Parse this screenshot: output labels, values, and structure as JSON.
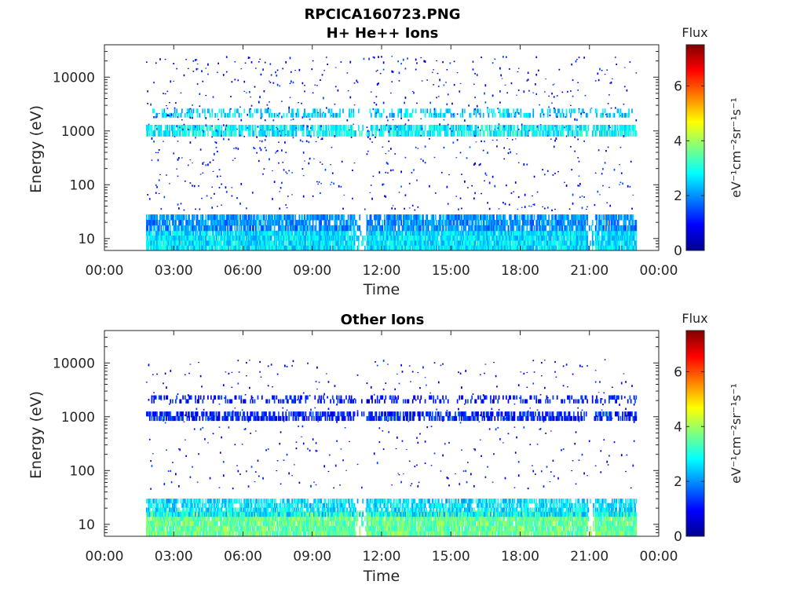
{
  "figure_title": "RPCICA160723.PNG",
  "chart_data": [
    {
      "type": "heatmap",
      "title": "H+ He++ Ions",
      "xlabel": "Time",
      "ylabel": "Energy (eV)",
      "x_ticks": [
        "00:00",
        "03:00",
        "06:00",
        "09:00",
        "12:00",
        "15:00",
        "18:00",
        "21:00",
        "00:00"
      ],
      "x_range_hours": [
        0,
        24
      ],
      "y_scale": "log",
      "y_ticks": [
        "10",
        "100",
        "1000",
        "10000"
      ],
      "y_range_eV": [
        6,
        40000
      ],
      "data_time_range_hours": [
        1.8,
        23.0
      ],
      "colorbar": {
        "label_top": "Flux",
        "label_side": "eV⁻¹cm⁻²sr⁻¹s⁻¹",
        "range": [
          0,
          7.5
        ],
        "ticks": [
          "0",
          "2",
          "4",
          "6"
        ]
      },
      "bands": [
        {
          "energy_range_eV": [
            6,
            14
          ],
          "level": 2.6,
          "density": 0.95,
          "note": "low-energy band"
        },
        {
          "energy_range_eV": [
            14,
            28
          ],
          "level": 2.0,
          "density": 0.8
        },
        {
          "energy_range_eV": [
            800,
            1300
          ],
          "level": 2.8,
          "density": 0.7,
          "note": "~1 keV band"
        },
        {
          "energy_range_eV": [
            1800,
            2600
          ],
          "level": 2.5,
          "density": 0.35
        },
        {
          "energy_range_eV": [
            30,
            25000
          ],
          "level": 1.0,
          "density": 0.12,
          "note": "background"
        }
      ],
      "gaps_hours": [
        [
          10.8,
          11.3
        ],
        [
          20.9,
          21.2
        ]
      ]
    },
    {
      "type": "heatmap",
      "title": "Other Ions",
      "xlabel": "Time",
      "ylabel": "Energy (eV)",
      "x_ticks": [
        "00:00",
        "03:00",
        "06:00",
        "09:00",
        "12:00",
        "15:00",
        "18:00",
        "21:00",
        "00:00"
      ],
      "x_range_hours": [
        0,
        24
      ],
      "y_scale": "log",
      "y_ticks": [
        "10",
        "100",
        "1000",
        "10000"
      ],
      "y_range_eV": [
        6,
        40000
      ],
      "data_time_range_hours": [
        1.8,
        23.0
      ],
      "colorbar": {
        "label_top": "Flux",
        "label_side": "eV⁻¹cm⁻²sr⁻¹s⁻¹",
        "range": [
          0,
          7.5
        ],
        "ticks": [
          "0",
          "2",
          "4",
          "6"
        ]
      },
      "bands": [
        {
          "energy_range_eV": [
            6,
            18
          ],
          "level": 3.6,
          "density": 0.95,
          "note": "strong low-energy band"
        },
        {
          "energy_range_eV": [
            14,
            30
          ],
          "level": 2.6,
          "density": 0.7
        },
        {
          "energy_range_eV": [
            850,
            1250
          ],
          "level": 1.2,
          "density": 0.6,
          "note": "~1 keV band"
        },
        {
          "energy_range_eV": [
            1800,
            2500
          ],
          "level": 1.0,
          "density": 0.25
        },
        {
          "energy_range_eV": [
            40,
            12000
          ],
          "level": 0.9,
          "density": 0.08,
          "note": "background"
        }
      ],
      "gaps_hours": [
        [
          10.8,
          11.3
        ],
        [
          20.9,
          21.2
        ]
      ]
    }
  ]
}
